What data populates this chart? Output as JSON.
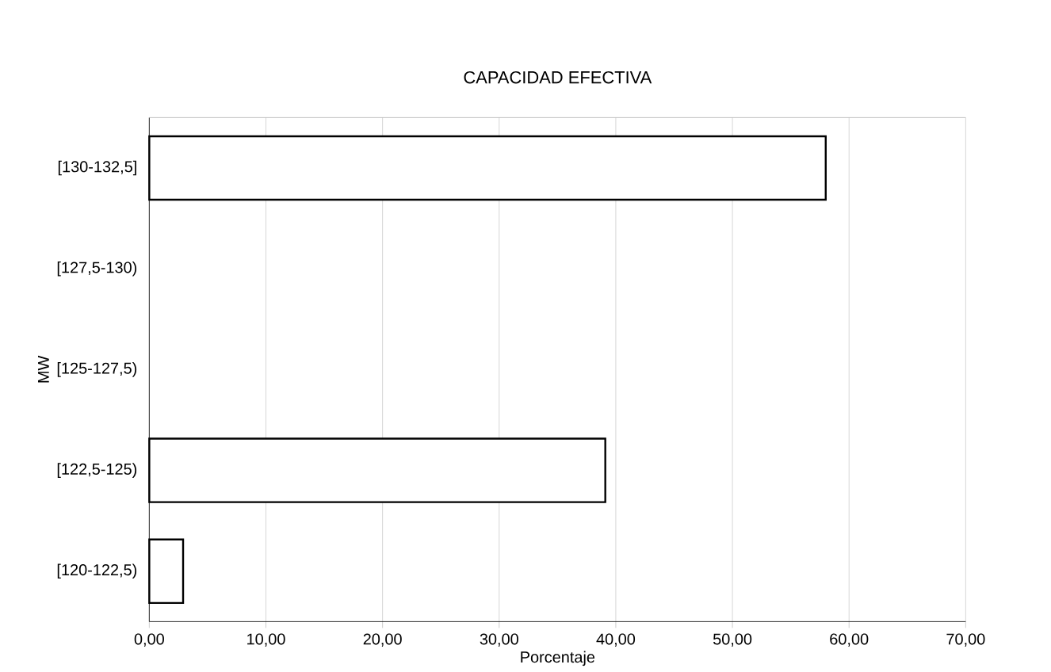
{
  "chart_data": {
    "type": "bar",
    "orientation": "horizontal",
    "title": "CAPACIDAD EFECTIVA",
    "xlabel": "Porcentaje",
    "ylabel": "MW",
    "categories": [
      "[130-132,5]",
      "[127,5-130)",
      "[125-127,5)",
      "[122,5-125)",
      "[120-122,5)"
    ],
    "values": [
      58.0,
      0,
      0,
      39.1,
      2.9
    ],
    "color": "#ffffff",
    "xlim": [
      0,
      70
    ],
    "xticks": [
      {
        "value": 0,
        "label": "0,00"
      },
      {
        "value": 10,
        "label": "10,00"
      },
      {
        "value": 20,
        "label": "20,00"
      },
      {
        "value": 30,
        "label": "30,00"
      },
      {
        "value": 40,
        "label": "40,00"
      },
      {
        "value": 50,
        "label": "50,00"
      },
      {
        "value": 60,
        "label": "60,00"
      },
      {
        "value": 70,
        "label": "70,00"
      }
    ],
    "grid": "x"
  }
}
